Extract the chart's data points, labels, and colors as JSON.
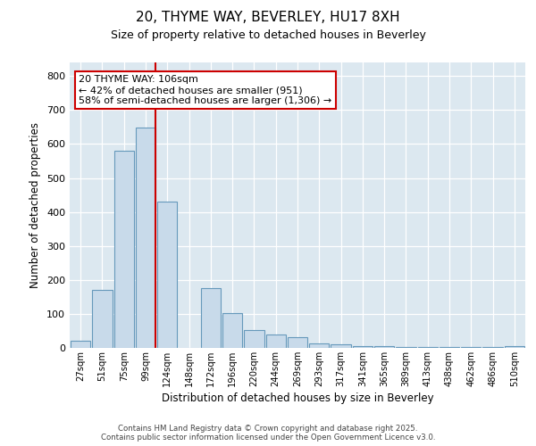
{
  "title1": "20, THYME WAY, BEVERLEY, HU17 8XH",
  "title2": "Size of property relative to detached houses in Beverley",
  "xlabel": "Distribution of detached houses by size in Beverley",
  "ylabel": "Number of detached properties",
  "categories": [
    "27sqm",
    "51sqm",
    "75sqm",
    "99sqm",
    "124sqm",
    "148sqm",
    "172sqm",
    "196sqm",
    "220sqm",
    "244sqm",
    "269sqm",
    "293sqm",
    "317sqm",
    "341sqm",
    "365sqm",
    "389sqm",
    "413sqm",
    "438sqm",
    "462sqm",
    "486sqm",
    "510sqm"
  ],
  "values": [
    20,
    170,
    580,
    648,
    430,
    0,
    175,
    102,
    52,
    40,
    32,
    12,
    10,
    4,
    4,
    2,
    2,
    2,
    2,
    2,
    5
  ],
  "bar_color": "#c8daea",
  "bar_edge_color": "#6699bb",
  "annotation_text": "20 THYME WAY: 106sqm\n← 42% of detached houses are smaller (951)\n58% of semi-detached houses are larger (1,306) →",
  "annotation_box_color": "#ffffff",
  "annotation_box_edge": "#cc0000",
  "vline_color": "#cc0000",
  "vline_x": 3.45,
  "ylim": [
    0,
    840
  ],
  "yticks": [
    0,
    100,
    200,
    300,
    400,
    500,
    600,
    700,
    800
  ],
  "fig_bg_color": "#ffffff",
  "plot_bg_color": "#dce8f0",
  "grid_color": "#ffffff",
  "title1_fontsize": 11,
  "title2_fontsize": 9,
  "footer1": "Contains HM Land Registry data © Crown copyright and database right 2025.",
  "footer2": "Contains public sector information licensed under the Open Government Licence v3.0."
}
